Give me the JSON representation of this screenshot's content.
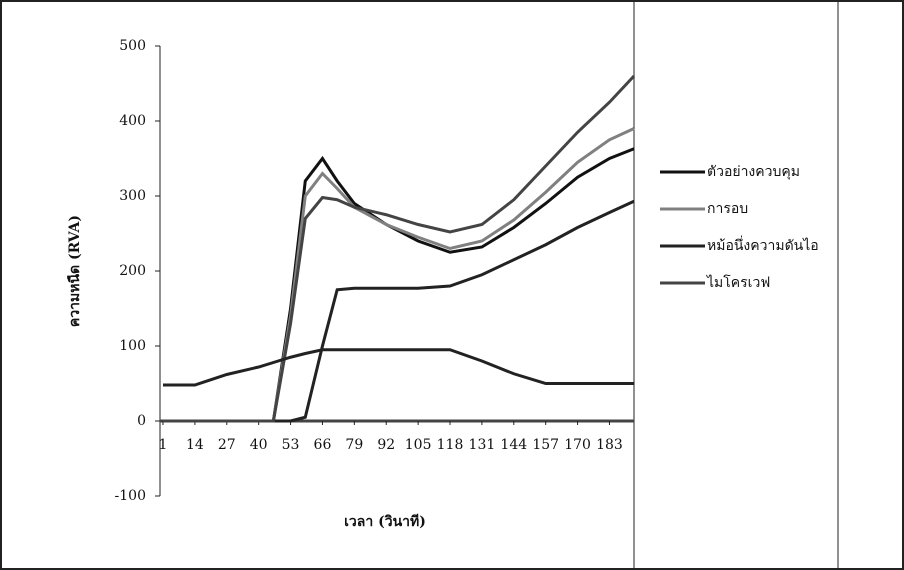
{
  "chart_data": {
    "type": "line",
    "y_label": "ความหนืด (RVA)",
    "x_label": "เวลา (วินาที)",
    "x": [
      1,
      14,
      27,
      40,
      46,
      53,
      59,
      66,
      72,
      79,
      92,
      105,
      118,
      131,
      144,
      157,
      170,
      183,
      193
    ],
    "xlim": [
      1,
      193
    ],
    "xticks": [
      1,
      14,
      27,
      40,
      53,
      66,
      79,
      92,
      105,
      118,
      131,
      144,
      157,
      170,
      183
    ],
    "ylim": [
      -100,
      500
    ],
    "yticks": [
      -100,
      0,
      100,
      200,
      300,
      400,
      500
    ],
    "series": [
      {
        "name": "ตัวอย่างควบคุม",
        "color": "#111111",
        "values": [
          0,
          0,
          0,
          0,
          0,
          150,
          320,
          350,
          320,
          290,
          262,
          240,
          225,
          232,
          258,
          290,
          325,
          350,
          363
        ]
      },
      {
        "name": "การอบ",
        "color": "#808080",
        "values": [
          0,
          0,
          0,
          0,
          0,
          140,
          300,
          330,
          310,
          285,
          262,
          245,
          230,
          240,
          268,
          305,
          345,
          375,
          390
        ]
      },
      {
        "name": "หม้อนึ่งความดันไอ",
        "color": "#222222",
        "values": [
          0,
          0,
          0,
          0,
          0,
          0,
          5,
          100,
          175,
          177,
          177,
          177,
          180,
          195,
          215,
          235,
          258,
          278,
          293
        ]
      },
      {
        "name": "ไมโครเวฟ",
        "color": "#444444",
        "values": [
          0,
          0,
          0,
          0,
          0,
          130,
          270,
          298,
          295,
          285,
          275,
          262,
          252,
          262,
          295,
          340,
          385,
          425,
          460
        ]
      },
      {
        "color": "#222222",
        "values": [
          48,
          48,
          62,
          72,
          78,
          85,
          90,
          95,
          95,
          95,
          95,
          95,
          95,
          80,
          63,
          50,
          50,
          50,
          50
        ]
      }
    ]
  }
}
